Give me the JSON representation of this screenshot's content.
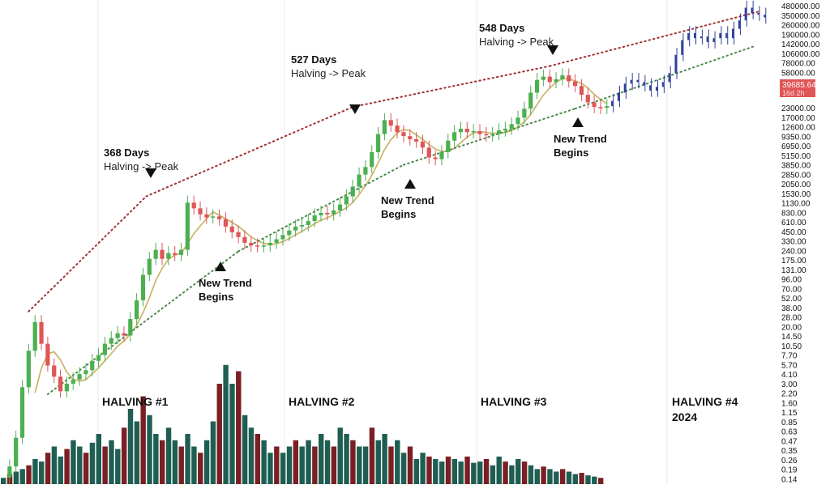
{
  "chart_data": {
    "type": "candlestick",
    "scale": "log",
    "colors": {
      "up": "#4caf50",
      "down": "#e05555",
      "forecast": "#2f3f9a",
      "vol_up": "#1f5e52",
      "vol_down": "#7a1f24",
      "ma": "#c8b060",
      "peak_line": "#a03030",
      "trend_line": "#4a8a4a",
      "price_tag": "#e05555",
      "grid": "#e8e8e8"
    },
    "y_ticks": [
      "480000.00",
      "350000.00",
      "260000.00",
      "190000.00",
      "142000.00",
      "106000.00",
      "78000.00",
      "58000.00",
      "23000.00",
      "17000.00",
      "12600.00",
      "9350.00",
      "6950.00",
      "5150.00",
      "3850.00",
      "2850.00",
      "2050.00",
      "1530.00",
      "1130.00",
      "830.00",
      "610.00",
      "450.00",
      "330.00",
      "240.00",
      "175.00",
      "131.00",
      "96.00",
      "70.00",
      "52.00",
      "38.00",
      "28.00",
      "20.00",
      "14.50",
      "10.50",
      "7.70",
      "5.70",
      "4.10",
      "3.00",
      "2.20",
      "1.60",
      "1.15",
      "0.85",
      "0.63",
      "0.47",
      "0.35",
      "0.26",
      "0.19",
      "0.14"
    ],
    "current_price": {
      "value": "39685.64",
      "countdown": "16d 2h"
    },
    "halvings": [
      {
        "label": "HALVING #1",
        "sub": ""
      },
      {
        "label": "HALVING #2",
        "sub": ""
      },
      {
        "label": "HALVING #3",
        "sub": ""
      },
      {
        "label": "HALVING #4",
        "sub": "2024"
      }
    ],
    "peak_annotations": [
      {
        "title": "368 Days",
        "sub": "Halving -> Peak"
      },
      {
        "title": "527 Days",
        "sub": "Halving -> Peak"
      },
      {
        "title": "548 Days",
        "sub": "Halving -> Peak"
      }
    ],
    "trend_annotations": [
      {
        "line1": "New Trend",
        "line2": "Begins"
      },
      {
        "line1": "New Trend",
        "line2": "Begins"
      },
      {
        "line1": "New Trend",
        "line2": "Begins"
      }
    ],
    "price_path": [
      [
        0,
        0.14
      ],
      [
        2,
        0.2
      ],
      [
        4,
        0.5
      ],
      [
        6,
        2.5
      ],
      [
        8,
        8
      ],
      [
        10,
        20
      ],
      [
        12,
        10
      ],
      [
        14,
        5
      ],
      [
        16,
        3.5
      ],
      [
        18,
        2.2
      ],
      [
        20,
        2.8
      ],
      [
        22,
        3.2
      ],
      [
        24,
        3.8
      ],
      [
        26,
        4.3
      ],
      [
        28,
        5.8
      ],
      [
        30,
        7
      ],
      [
        32,
        10
      ],
      [
        34,
        12
      ],
      [
        36,
        14
      ],
      [
        38,
        13
      ],
      [
        40,
        22
      ],
      [
        42,
        40
      ],
      [
        44,
        90
      ],
      [
        46,
        150
      ],
      [
        48,
        200
      ],
      [
        50,
        150
      ],
      [
        52,
        180
      ],
      [
        54,
        170
      ],
      [
        56,
        200
      ],
      [
        58,
        900
      ],
      [
        60,
        750
      ],
      [
        62,
        620
      ],
      [
        64,
        560
      ],
      [
        66,
        580
      ],
      [
        68,
        530
      ],
      [
        70,
        420
      ],
      [
        72,
        350
      ],
      [
        74,
        300
      ],
      [
        76,
        250
      ],
      [
        78,
        230
      ],
      [
        80,
        225
      ],
      [
        82,
        230
      ],
      [
        84,
        250
      ],
      [
        86,
        280
      ],
      [
        88,
        320
      ],
      [
        90,
        370
      ],
      [
        92,
        420
      ],
      [
        94,
        440
      ],
      [
        96,
        500
      ],
      [
        98,
        600
      ],
      [
        100,
        650
      ],
      [
        102,
        620
      ],
      [
        104,
        700
      ],
      [
        106,
        850
      ],
      [
        108,
        1100
      ],
      [
        110,
        1500
      ],
      [
        112,
        2200
      ],
      [
        114,
        2800
      ],
      [
        116,
        4500
      ],
      [
        118,
        8000
      ],
      [
        120,
        12500
      ],
      [
        122,
        10500
      ],
      [
        124,
        8500
      ],
      [
        126,
        7500
      ],
      [
        128,
        6800
      ],
      [
        130,
        6300
      ],
      [
        132,
        5200
      ],
      [
        134,
        3800
      ],
      [
        136,
        3600
      ],
      [
        138,
        4500
      ],
      [
        140,
        6500
      ],
      [
        142,
        8500
      ],
      [
        144,
        9500
      ],
      [
        146,
        8500
      ],
      [
        148,
        8800
      ],
      [
        150,
        8000
      ],
      [
        152,
        7700
      ],
      [
        154,
        8000
      ],
      [
        156,
        9000
      ],
      [
        158,
        9500
      ],
      [
        160,
        11000
      ],
      [
        162,
        13500
      ],
      [
        164,
        18000
      ],
      [
        166,
        30000
      ],
      [
        168,
        45000
      ],
      [
        170,
        50000
      ],
      [
        172,
        42000
      ],
      [
        174,
        46000
      ],
      [
        176,
        52000
      ],
      [
        178,
        43000
      ],
      [
        180,
        37000
      ],
      [
        182,
        28000
      ],
      [
        184,
        22000
      ],
      [
        186,
        19000
      ],
      [
        188,
        18500
      ],
      [
        190,
        19500
      ]
    ],
    "forecast_path": [
      [
        190,
        19500
      ],
      [
        192,
        23000
      ],
      [
        194,
        30000
      ],
      [
        196,
        40000
      ],
      [
        198,
        45000
      ],
      [
        200,
        42000
      ],
      [
        202,
        38000
      ],
      [
        204,
        32000
      ],
      [
        206,
        36000
      ],
      [
        208,
        42000
      ],
      [
        210,
        56000
      ],
      [
        212,
        100000
      ],
      [
        214,
        160000
      ],
      [
        216,
        200000
      ],
      [
        218,
        170000
      ],
      [
        220,
        180000
      ],
      [
        222,
        150000
      ],
      [
        224,
        170000
      ],
      [
        226,
        200000
      ],
      [
        228,
        170000
      ],
      [
        230,
        230000
      ],
      [
        232,
        300000
      ],
      [
        234,
        450000
      ],
      [
        236,
        380000
      ],
      [
        238,
        360000
      ],
      [
        240,
        330000
      ]
    ],
    "volume": [
      [
        0,
        0.05
      ],
      [
        2,
        0.08
      ],
      [
        4,
        0.1
      ],
      [
        6,
        0.12
      ],
      [
        8,
        0.15
      ],
      [
        10,
        0.2
      ],
      [
        12,
        0.18
      ],
      [
        14,
        0.25
      ],
      [
        16,
        0.3
      ],
      [
        18,
        0.22
      ],
      [
        20,
        0.28
      ],
      [
        22,
        0.35
      ],
      [
        24,
        0.3
      ],
      [
        26,
        0.25
      ],
      [
        28,
        0.33
      ],
      [
        30,
        0.4
      ],
      [
        32,
        0.3
      ],
      [
        34,
        0.35
      ],
      [
        36,
        0.28
      ],
      [
        38,
        0.45
      ],
      [
        40,
        0.6
      ],
      [
        42,
        0.5
      ],
      [
        44,
        0.7
      ],
      [
        46,
        0.55
      ],
      [
        48,
        0.4
      ],
      [
        50,
        0.35
      ],
      [
        52,
        0.45
      ],
      [
        54,
        0.35
      ],
      [
        56,
        0.3
      ],
      [
        58,
        0.4
      ],
      [
        60,
        0.3
      ],
      [
        62,
        0.25
      ],
      [
        64,
        0.35
      ],
      [
        66,
        0.5
      ],
      [
        68,
        0.8
      ],
      [
        70,
        0.95
      ],
      [
        72,
        0.8
      ],
      [
        74,
        0.9
      ],
      [
        76,
        0.55
      ],
      [
        78,
        0.45
      ],
      [
        80,
        0.4
      ],
      [
        82,
        0.35
      ],
      [
        84,
        0.25
      ],
      [
        86,
        0.3
      ],
      [
        88,
        0.25
      ],
      [
        90,
        0.3
      ],
      [
        92,
        0.35
      ],
      [
        94,
        0.3
      ],
      [
        96,
        0.35
      ],
      [
        98,
        0.3
      ],
      [
        100,
        0.4
      ],
      [
        102,
        0.35
      ],
      [
        104,
        0.3
      ],
      [
        106,
        0.45
      ],
      [
        108,
        0.4
      ],
      [
        110,
        0.35
      ],
      [
        112,
        0.3
      ],
      [
        114,
        0.3
      ],
      [
        116,
        0.45
      ],
      [
        118,
        0.35
      ],
      [
        120,
        0.4
      ],
      [
        122,
        0.3
      ],
      [
        124,
        0.35
      ],
      [
        126,
        0.25
      ],
      [
        128,
        0.3
      ],
      [
        130,
        0.2
      ],
      [
        132,
        0.25
      ],
      [
        134,
        0.22
      ],
      [
        136,
        0.2
      ],
      [
        138,
        0.18
      ],
      [
        140,
        0.22
      ],
      [
        142,
        0.2
      ],
      [
        144,
        0.18
      ],
      [
        146,
        0.22
      ],
      [
        148,
        0.17
      ],
      [
        150,
        0.18
      ],
      [
        152,
        0.2
      ],
      [
        154,
        0.15
      ],
      [
        156,
        0.22
      ],
      [
        158,
        0.18
      ],
      [
        160,
        0.15
      ],
      [
        162,
        0.2
      ],
      [
        164,
        0.18
      ],
      [
        166,
        0.15
      ],
      [
        168,
        0.12
      ],
      [
        170,
        0.14
      ],
      [
        172,
        0.12
      ],
      [
        174,
        0.1
      ],
      [
        176,
        0.12
      ],
      [
        178,
        0.1
      ],
      [
        180,
        0.08
      ],
      [
        182,
        0.09
      ],
      [
        184,
        0.07
      ],
      [
        186,
        0.06
      ],
      [
        188,
        0.05
      ]
    ]
  }
}
